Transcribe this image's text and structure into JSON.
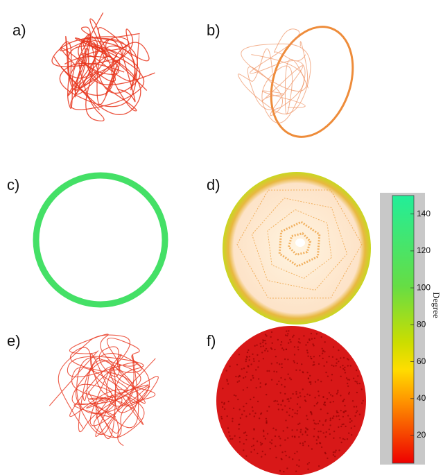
{
  "panels": [
    {
      "label": "a)"
    },
    {
      "label": "b)"
    },
    {
      "label": "c)"
    },
    {
      "label": "d)"
    },
    {
      "label": "e)"
    },
    {
      "label": "f)"
    }
  ],
  "colorbar": {
    "label": "Degree",
    "ylim": [
      5,
      150
    ],
    "yticks": [
      20,
      40,
      60,
      80,
      100,
      120,
      140
    ]
  }
}
